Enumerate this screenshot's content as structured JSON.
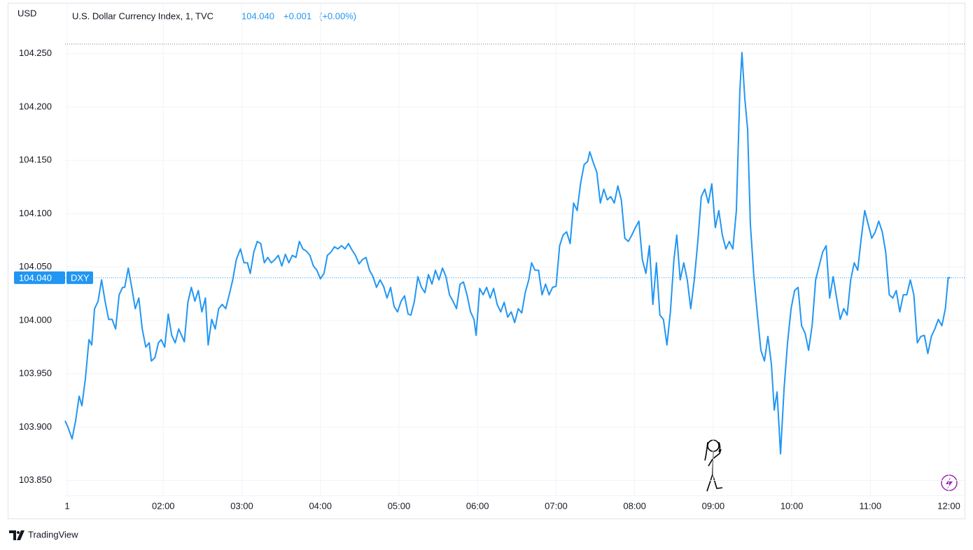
{
  "chart_data": {
    "type": "line",
    "unit": "USD",
    "title": "U.S. Dollar Currency Index, 1, TVC",
    "change": "+0.001",
    "change_pct": "(+0.00%)",
    "source": "TradingView",
    "price_line": {
      "value": 104.04,
      "label": "104.040"
    },
    "high_line": 104.259,
    "grid": true,
    "xlim": [
      0.75,
      12.2
    ],
    "ylim": [
      103.836,
      104.297
    ],
    "xticks": [
      {
        "value": 0.777,
        "label": "1"
      },
      {
        "value": 2,
        "label": "02:00"
      },
      {
        "value": 3,
        "label": "03:00"
      },
      {
        "value": 4,
        "label": "04:00"
      },
      {
        "value": 5,
        "label": "05:00"
      },
      {
        "value": 6,
        "label": "06:00"
      },
      {
        "value": 7,
        "label": "07:00"
      },
      {
        "value": 8,
        "label": "08:00"
      },
      {
        "value": 9,
        "label": "09:00"
      },
      {
        "value": 10,
        "label": "10:00"
      },
      {
        "value": 11,
        "label": "11:00"
      },
      {
        "value": 12,
        "label": "12:00"
      }
    ],
    "yticks": [
      {
        "value": 103.85,
        "label": "103.850"
      },
      {
        "value": 103.9,
        "label": "103.900"
      },
      {
        "value": 103.95,
        "label": "103.950"
      },
      {
        "value": 104,
        "label": "104.000"
      },
      {
        "value": 104.05,
        "label": "104.050"
      },
      {
        "value": 104.1,
        "label": "104.100"
      },
      {
        "value": 104.15,
        "label": "104.150"
      },
      {
        "value": 104.2,
        "label": "104.200"
      },
      {
        "value": 104.25,
        "label": "104.250"
      }
    ],
    "x": [
      0.75,
      0.786,
      0.839,
      0.884,
      0.929,
      0.964,
      1.009,
      1.054,
      1.089,
      1.125,
      1.17,
      1.214,
      1.259,
      1.304,
      1.348,
      1.393,
      1.438,
      1.482,
      1.509,
      1.554,
      1.598,
      1.643,
      1.688,
      1.732,
      1.777,
      1.821,
      1.848,
      1.893,
      1.938,
      1.973,
      2.018,
      2.063,
      2.107,
      2.152,
      2.196,
      2.268,
      2.313,
      2.357,
      2.402,
      2.446,
      2.491,
      2.536,
      2.571,
      2.616,
      2.661,
      2.705,
      2.75,
      2.795,
      2.839,
      2.884,
      2.929,
      2.982,
      3.027,
      3.071,
      3.107,
      3.152,
      3.196,
      3.241,
      3.286,
      3.33,
      3.375,
      3.42,
      3.464,
      3.509,
      3.554,
      3.598,
      3.643,
      3.688,
      3.732,
      3.777,
      3.821,
      3.866,
      3.911,
      3.955,
      4.0,
      4.045,
      4.089,
      4.134,
      4.179,
      4.223,
      4.268,
      4.313,
      4.357,
      4.402,
      4.446,
      4.491,
      4.536,
      4.58,
      4.625,
      4.67,
      4.714,
      4.759,
      4.804,
      4.848,
      4.893,
      4.938,
      4.982,
      5.027,
      5.071,
      5.116,
      5.152,
      5.196,
      5.241,
      5.286,
      5.33,
      5.375,
      5.42,
      5.464,
      5.509,
      5.554,
      5.598,
      5.643,
      5.688,
      5.732,
      5.777,
      5.821,
      5.866,
      5.911,
      5.955,
      5.982,
      6.027,
      6.071,
      6.116,
      6.161,
      6.205,
      6.25,
      6.295,
      6.339,
      6.384,
      6.429,
      6.473,
      6.518,
      6.563,
      6.607,
      6.652,
      6.688,
      6.732,
      6.777,
      6.821,
      6.866,
      6.911,
      6.955,
      7.0,
      7.045,
      7.089,
      7.134,
      7.179,
      7.223,
      7.268,
      7.313,
      7.357,
      7.402,
      7.429,
      7.473,
      7.518,
      7.563,
      7.607,
      7.652,
      7.696,
      7.741,
      7.786,
      7.83,
      7.875,
      7.92,
      7.964,
      8.009,
      8.054,
      8.098,
      8.143,
      8.188,
      8.232,
      8.277,
      8.321,
      8.366,
      8.411,
      8.455,
      8.5,
      8.536,
      8.58,
      8.625,
      8.67,
      8.714,
      8.759,
      8.804,
      8.848,
      8.893,
      8.938,
      8.982,
      9.027,
      9.071,
      9.116,
      9.161,
      9.205,
      9.25,
      9.295,
      9.339,
      9.366,
      9.402,
      9.438,
      9.473,
      9.518,
      9.563,
      9.607,
      9.652,
      9.696,
      9.741,
      9.777,
      9.813,
      9.857,
      9.902,
      9.946,
      9.991,
      10.036,
      10.08,
      10.125,
      10.17,
      10.214,
      10.259,
      10.304,
      10.348,
      10.393,
      10.438,
      10.482,
      10.527,
      10.571,
      10.616,
      10.661,
      10.705,
      10.75,
      10.795,
      10.839,
      10.884,
      10.929,
      10.973,
      11.018,
      11.063,
      11.107,
      11.152,
      11.196,
      11.241,
      11.286,
      11.33,
      11.375,
      11.42,
      11.464,
      11.509,
      11.554,
      11.598,
      11.643,
      11.688,
      11.732,
      11.777,
      11.821,
      11.866,
      11.911,
      11.955,
      11.991,
      12.018
    ],
    "series": [
      {
        "name": "DXY",
        "color": "#2196f3",
        "values": [
          103.906,
          103.9,
          103.889,
          103.906,
          103.929,
          103.92,
          103.946,
          103.982,
          103.977,
          104.011,
          104.018,
          104.038,
          104.018,
          104.001,
          104.001,
          103.992,
          104.024,
          104.031,
          104.031,
          104.049,
          104.031,
          104.011,
          104.021,
          103.992,
          103.975,
          103.979,
          103.962,
          103.965,
          103.979,
          103.982,
          103.975,
          104.006,
          103.986,
          103.979,
          103.992,
          103.98,
          104.017,
          104.031,
          104.018,
          104.028,
          104.008,
          104.021,
          103.977,
          104.001,
          103.992,
          104.011,
          104.015,
          104.011,
          104.024,
          104.038,
          104.057,
          104.067,
          104.054,
          104.054,
          104.044,
          104.064,
          104.074,
          104.072,
          104.054,
          104.059,
          104.054,
          104.057,
          104.061,
          104.051,
          104.062,
          104.054,
          104.061,
          104.059,
          104.074,
          104.067,
          104.065,
          104.061,
          104.051,
          104.047,
          104.039,
          104.044,
          104.061,
          104.064,
          104.069,
          104.067,
          104.07,
          104.067,
          104.072,
          104.066,
          104.061,
          104.053,
          104.057,
          104.059,
          104.047,
          104.041,
          104.031,
          104.038,
          104.032,
          104.021,
          104.031,
          104.013,
          104.008,
          104.018,
          104.023,
          104.006,
          104.005,
          104.018,
          104.041,
          104.031,
          104.026,
          104.043,
          104.034,
          104.047,
          104.038,
          104.049,
          104.041,
          104.024,
          104.018,
          104.011,
          104.034,
          104.036,
          104.024,
          104.008,
          104.001,
          103.986,
          104.03,
          104.024,
          104.031,
          104.021,
          104.03,
          104.015,
          104.008,
          104.017,
          104.003,
          104.008,
          103.998,
          104.011,
          104.007,
          104.026,
          104.038,
          104.054,
          104.047,
          104.047,
          104.024,
          104.034,
          104.024,
          104.031,
          104.032,
          104.07,
          104.08,
          104.083,
          104.072,
          104.11,
          104.103,
          104.129,
          104.146,
          104.149,
          104.158,
          104.148,
          104.139,
          104.11,
          104.123,
          104.113,
          104.116,
          104.11,
          104.126,
          104.113,
          104.077,
          104.074,
          104.08,
          104.087,
          104.093,
          104.057,
          104.044,
          104.07,
          104.015,
          104.054,
          104.005,
          104.001,
          103.977,
          104.008,
          104.057,
          104.08,
          104.038,
          104.054,
          104.038,
          104.011,
          104.038,
          104.074,
          104.116,
          104.123,
          104.11,
          104.128,
          104.087,
          104.103,
          104.08,
          104.067,
          104.074,
          104.067,
          104.103,
          104.215,
          104.251,
          104.208,
          104.179,
          104.09,
          104.041,
          104.005,
          103.972,
          103.962,
          103.985,
          103.959,
          103.916,
          103.933,
          103.875,
          103.936,
          103.979,
          104.011,
          104.028,
          104.031,
          103.995,
          103.988,
          103.972,
          103.995,
          104.038,
          104.051,
          104.064,
          104.07,
          104.021,
          104.041,
          104.021,
          104.001,
          104.011,
          104.005,
          104.038,
          104.054,
          104.047,
          104.077,
          104.103,
          104.09,
          104.077,
          104.083,
          104.093,
          104.083,
          104.064,
          104.024,
          104.021,
          104.028,
          104.008,
          104.024,
          104.024,
          104.038,
          104.024,
          103.979,
          103.985,
          103.986,
          103.969,
          103.985,
          103.992,
          104.001,
          103.995,
          104.011,
          104.04,
          104.04
        ]
      }
    ]
  }
}
